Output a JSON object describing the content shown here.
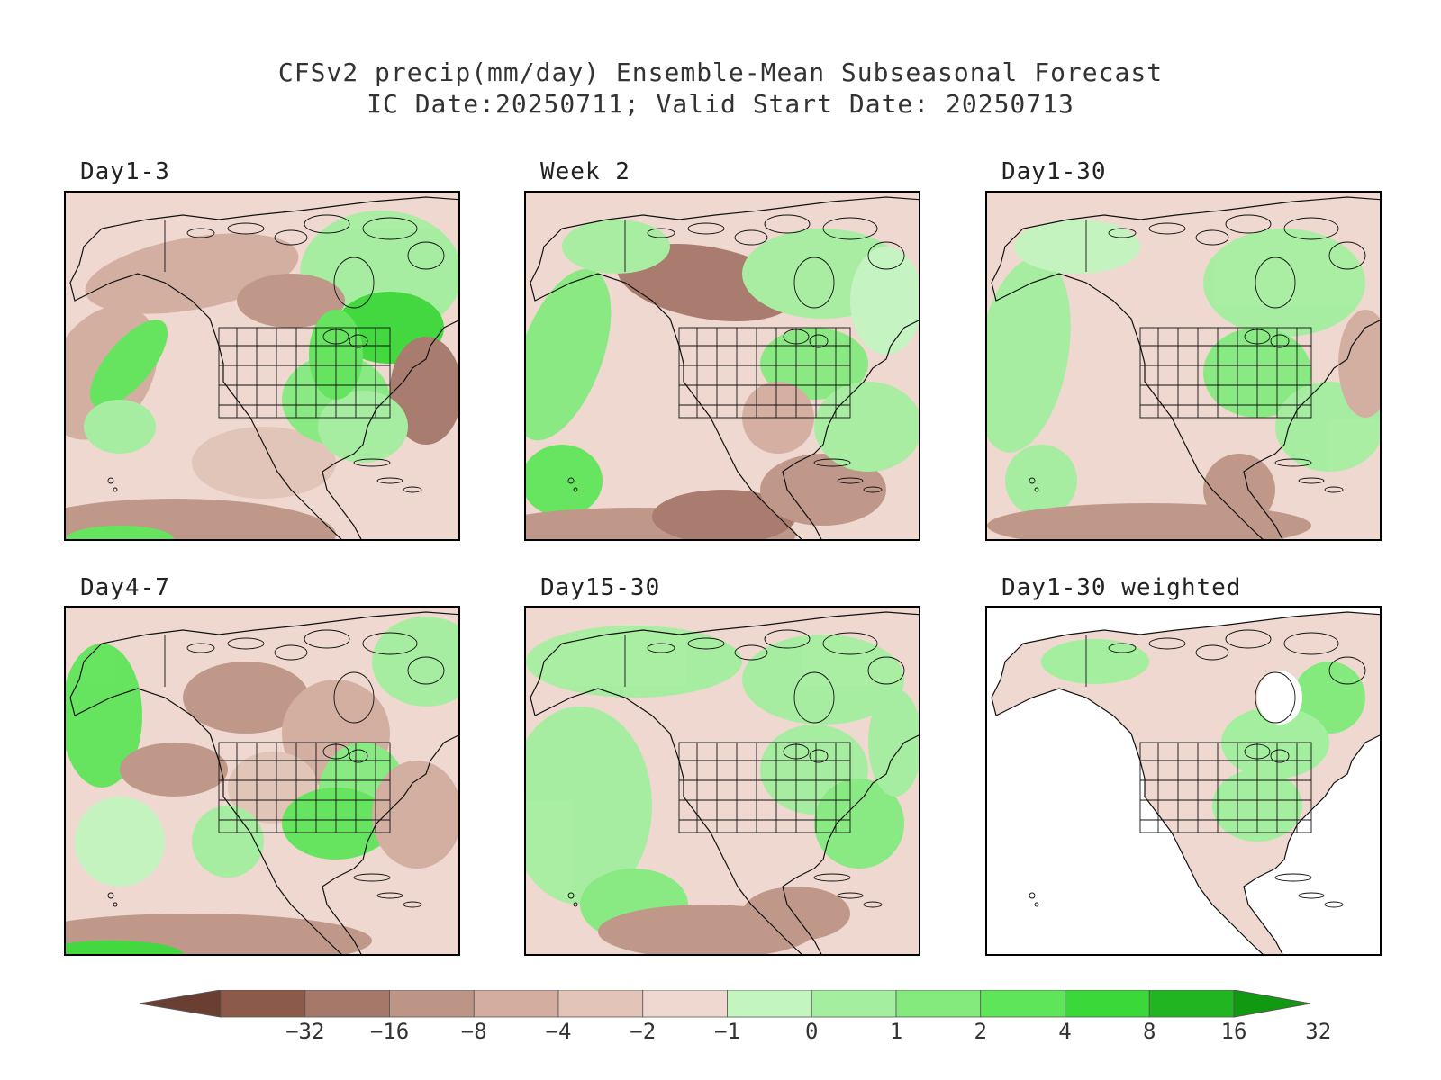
{
  "title_line1": "CFSv2 precip(mm/day) Ensemble-Mean Subseasonal Forecast",
  "title_line2": "IC Date:20250711; Valid Start Date: 20250713",
  "panels": [
    {
      "label": "Day1-3",
      "style": "d13"
    },
    {
      "label": "Week 2",
      "style": "wk2"
    },
    {
      "label": "Day1-30",
      "style": "d130"
    },
    {
      "label": "Day4-7",
      "style": "d47"
    },
    {
      "label": "Day15-30",
      "style": "d1530"
    },
    {
      "label": "Day1-30 weighted",
      "style": "weighted"
    }
  ],
  "colorbar": {
    "labels": [
      "-32",
      "-16",
      "-8",
      "-4",
      "-2",
      "-1",
      "0",
      "1",
      "2",
      "4",
      "8",
      "16",
      "32"
    ],
    "colors": [
      "#6b3e32",
      "#8b5a4b",
      "#a5786a",
      "#bd9586",
      "#d2ada0",
      "#e2c4b8",
      "#eed8cf",
      "#c2f5c0",
      "#a4ef9f",
      "#84ea7e",
      "#5fe55a",
      "#3ad838",
      "#22b522",
      "#119a11"
    ]
  }
}
